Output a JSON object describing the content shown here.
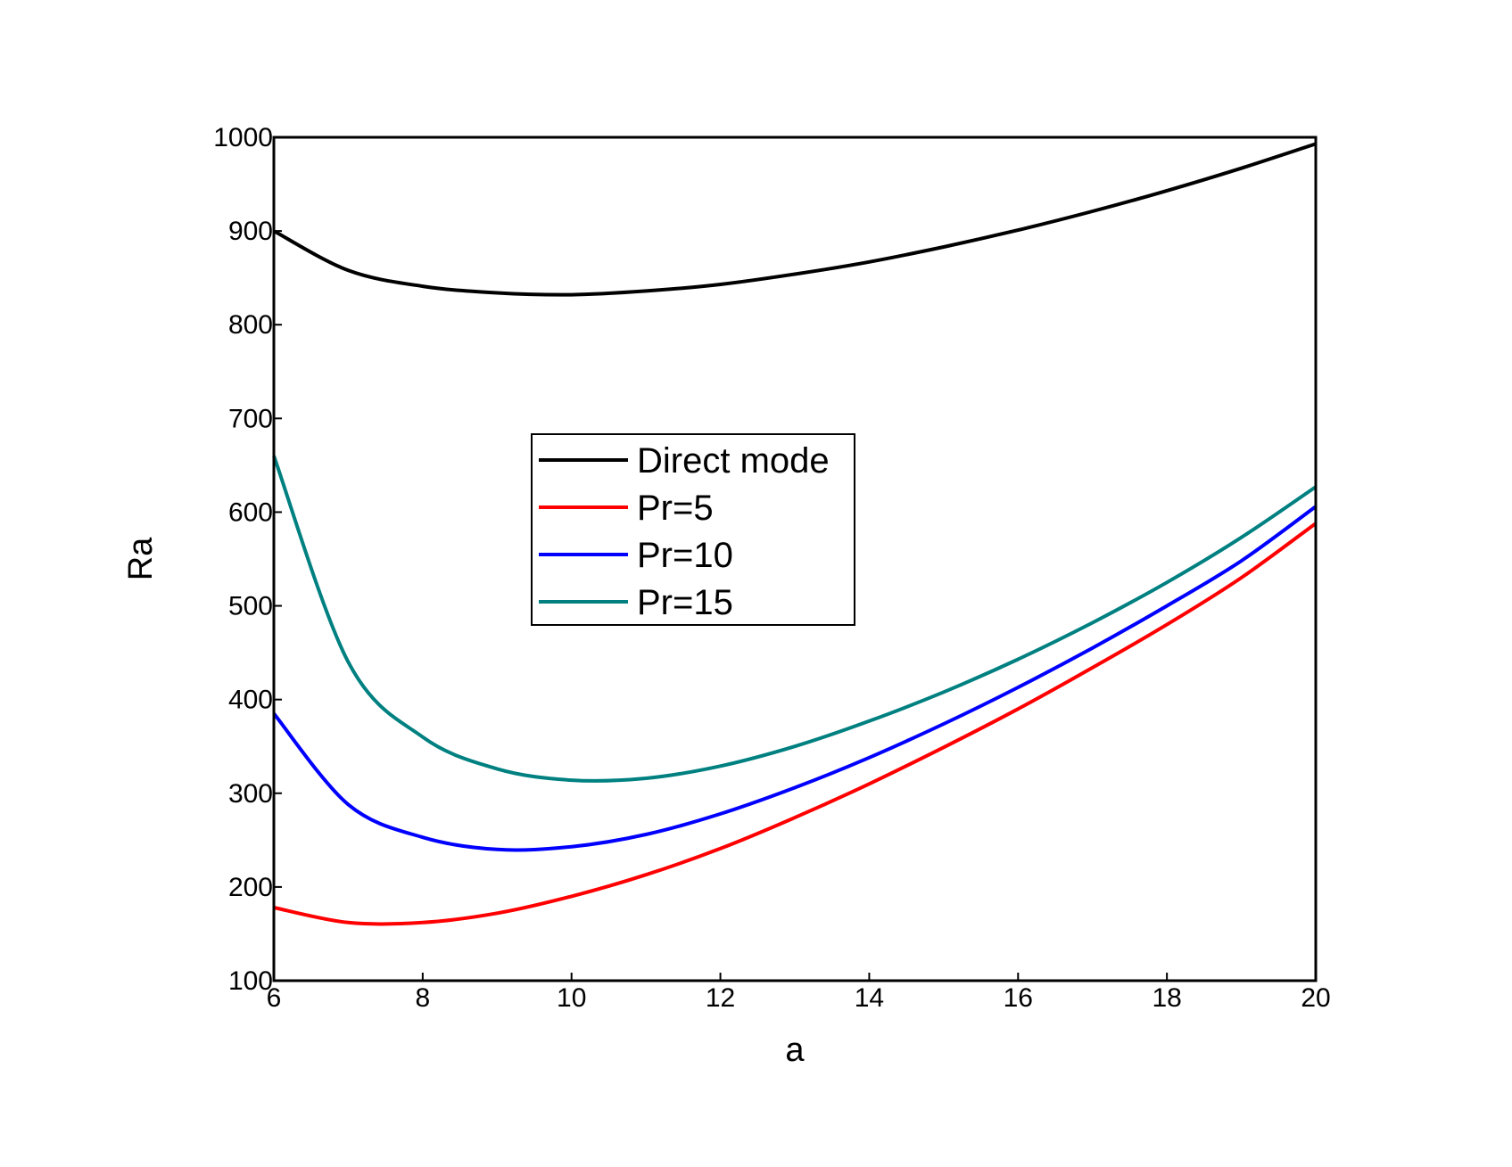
{
  "chart_data": {
    "type": "line",
    "title": "",
    "xlabel": "a",
    "ylabel": "Ra",
    "xlim": [
      6,
      20
    ],
    "ylim": [
      100,
      1000
    ],
    "xticks": [
      6,
      8,
      10,
      12,
      14,
      16,
      18,
      20
    ],
    "yticks": [
      100,
      200,
      300,
      400,
      500,
      600,
      700,
      800,
      900,
      1000
    ],
    "grid": false,
    "legend_position": "center",
    "x": [
      6,
      7,
      8,
      9,
      10,
      11,
      12,
      13,
      14,
      15,
      16,
      17,
      18,
      19,
      20
    ],
    "series": [
      {
        "name": "Direct mode",
        "color": "#000000",
        "values": [
          900,
          858,
          841,
          834,
          832,
          836,
          843,
          854,
          867,
          883,
          901,
          921,
          943,
          967,
          993
        ]
      },
      {
        "name": "Pr=5",
        "color": "#ff0000",
        "values": [
          178,
          162,
          162,
          172,
          190,
          213,
          241,
          274,
          310,
          349,
          390,
          434,
          480,
          530,
          588
        ]
      },
      {
        "name": "Pr=10",
        "color": "#0000ff",
        "values": [
          385,
          288,
          253,
          240,
          243,
          256,
          278,
          306,
          338,
          374,
          413,
          455,
          500,
          548,
          606
        ]
      },
      {
        "name": "Pr=15",
        "color": "#008080",
        "values": [
          660,
          440,
          360,
          326,
          314,
          316,
          329,
          350,
          377,
          408,
          443,
          482,
          525,
          573,
          627
        ]
      }
    ]
  }
}
